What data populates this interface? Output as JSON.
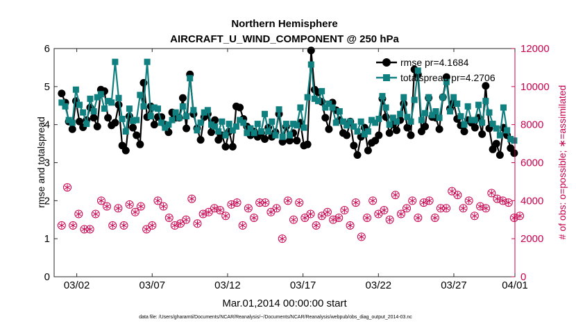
{
  "chart_data": {
    "type": "line",
    "title": "Northern Hemisphere",
    "subtitle": "AIRCRAFT_U_WIND_COMPONENT @ 250 hPa",
    "xlabel": "Mar.01,2014 00:00:00 start",
    "ylabel": "rmse and totalspread",
    "ylabel_right": "# of obs: o=possible; ∗=assimilated",
    "ylim": [
      0,
      6
    ],
    "ylim_right": [
      0,
      12000
    ],
    "xlim": [
      0.5,
      31.05
    ],
    "yticks": [
      0,
      1,
      2,
      3,
      4,
      5,
      6
    ],
    "yticks_right": [
      0,
      2000,
      4000,
      6000,
      8000,
      10000,
      12000
    ],
    "xticks": [
      {
        "x": 2,
        "label": "03/02"
      },
      {
        "x": 7,
        "label": "03/07"
      },
      {
        "x": 12,
        "label": "03/12"
      },
      {
        "x": 17,
        "label": "03/17"
      },
      {
        "x": 22,
        "label": "03/22"
      },
      {
        "x": 27,
        "label": "03/27"
      },
      {
        "x": 32,
        "label": "04/01"
      }
    ],
    "colors": {
      "rmse": "#000000",
      "spread": "#0f7f7f",
      "obs": "#c8004e"
    },
    "footer": "data file: /Users/gharamti/Documents/NCAR/Reanalysis/~/Documents/NCAR/Reanalysis/webpub/obs_diag_output_2014-03.nc",
    "series": [
      {
        "name": "rmse pr=4.1684",
        "axis": "left",
        "marker": "circle",
        "color": "#000000",
        "values": [
          4.82,
          4.58,
          4.08,
          3.88,
          4.62,
          4.08,
          3.93,
          4.12,
          4.45,
          4.18,
          3.95,
          4.92,
          4.88,
          4.18,
          3.98,
          4.05,
          4.52,
          3.45,
          3.32,
          4.22,
          3.92,
          3.72,
          3.48,
          5.1,
          4.2,
          4.48,
          4.0,
          4.2,
          4.2,
          4.0,
          3.8,
          4.32,
          4.18,
          4.18,
          4.7,
          3.9,
          5.32,
          4.28,
          3.9,
          3.6,
          4.2,
          4.28,
          3.8,
          4.12,
          3.6,
          3.72,
          3.42,
          3.82,
          3.42,
          4.48,
          4.45,
          4.15,
          3.95,
          3.72,
          3.82,
          3.68,
          3.78,
          3.62,
          3.92,
          3.68,
          3.8,
          4.28,
          3.55,
          3.95,
          3.58,
          3.78,
          3.58,
          4.05,
          3.45,
          3.48,
          5.95,
          4.92,
          4.85,
          4.6,
          4.18,
          3.88,
          4.58,
          4.38,
          4.12,
          3.78,
          3.72,
          4.08,
          3.45,
          3.2,
          3.68,
          3.92,
          3.32,
          3.52,
          3.58,
          3.72,
          4.68,
          4.2,
          3.78,
          4.0,
          3.85,
          4.12,
          4.55,
          3.92,
          3.72,
          5.45,
          5.32,
          3.82,
          3.95,
          4.7,
          4.2,
          4.18,
          3.88,
          4.72,
          5.25,
          4.42,
          4.58,
          4.15,
          3.98,
          3.82,
          4.12,
          4.05,
          3.92,
          4.18,
          3.75,
          5.02,
          3.9,
          3.35,
          3.5,
          3.2,
          3.92,
          3.72,
          3.38,
          3.25
        ]
      },
      {
        "name": "totalspread pr=4.2706",
        "axis": "left",
        "marker": "square",
        "color": "#0f7f7f",
        "values": [
          4.58,
          4.48,
          4.12,
          4.05,
          4.92,
          4.52,
          4.32,
          4.02,
          4.68,
          4.35,
          4.72,
          4.8,
          4.42,
          4.62,
          4.58,
          5.65,
          4.7,
          4.15,
          3.82,
          4.42,
          4.1,
          4.12,
          4.78,
          4.48,
          5.65,
          4.22,
          4.45,
          4.42,
          4.05,
          3.92,
          4.0,
          4.12,
          4.32,
          4.18,
          4.48,
          4.22,
          5.22,
          4.38,
          3.85,
          4.05,
          4.32,
          4.38,
          4.0,
          3.95,
          3.82,
          4.08,
          3.72,
          4.02,
          3.85,
          3.95,
          4.12,
          4.05,
          3.78,
          3.9,
          3.78,
          4.02,
          3.82,
          4.28,
          3.82,
          4.08,
          3.72,
          4.4,
          3.68,
          4.02,
          3.72,
          4.02,
          3.98,
          4.45,
          3.92,
          4.72,
          5.58,
          4.68,
          4.62,
          4.88,
          4.45,
          4.55,
          4.45,
          4.05,
          4.35,
          4.08,
          3.98,
          4.08,
          3.95,
          3.82,
          4.08,
          3.75,
          3.82,
          4.12,
          4.05,
          4.15,
          4.75,
          4.45,
          4.0,
          4.18,
          4.08,
          4.28,
          4.72,
          4.2,
          4.08,
          4.65,
          5.42,
          4.12,
          4.3,
          4.72,
          4.25,
          4.35,
          4.18,
          4.72,
          5.12,
          4.35,
          4.72,
          4.55,
          4.22,
          4.0,
          4.48,
          4.12,
          4.12,
          4.52,
          4.05,
          4.62,
          4.32,
          4.02,
          3.9,
          3.72,
          4.45,
          3.85,
          3.62,
          3.58
        ]
      },
      {
        "name": "obs possible",
        "axis": "right",
        "marker": "circle-open",
        "color": "#c8004e",
        "values": [
          2700,
          4700,
          2700,
          3300,
          2500,
          2500,
          3300,
          4000,
          3700,
          2700,
          3600,
          2700,
          3800,
          3400,
          3700,
          2500,
          2700,
          4000,
          3700,
          3100,
          2700,
          2800,
          3000,
          4100,
          2800,
          3300,
          3400,
          3600,
          3500,
          3200,
          3800,
          3900,
          2700,
          3600,
          3100,
          3900,
          3900,
          3400,
          3600,
          2000,
          4000,
          3000,
          3900,
          3100,
          3300,
          2700,
          3200,
          3400,
          3000,
          3100,
          3500,
          2700,
          3900,
          2100,
          3100,
          4000,
          3300,
          3500,
          3000,
          4300,
          3300,
          3600,
          4000,
          3100,
          3900,
          4000,
          3100,
          3600,
          3600,
          4500,
          4300,
          3600,
          4000,
          3200,
          3700,
          3600,
          4400,
          4100,
          4000,
          3900,
          3100,
          3200
        ]
      },
      {
        "name": "obs assimilated",
        "axis": "right",
        "marker": "asterisk",
        "color": "#c8004e",
        "values": [
          2700,
          4700,
          2700,
          3300,
          2500,
          2500,
          3300,
          4000,
          3700,
          2700,
          3600,
          2700,
          3800,
          3400,
          3700,
          2500,
          2700,
          4000,
          3700,
          3100,
          2700,
          2800,
          3000,
          4100,
          2800,
          3300,
          3400,
          3600,
          3500,
          3200,
          3800,
          3900,
          2700,
          3600,
          3100,
          3900,
          3900,
          3400,
          3600,
          2000,
          4000,
          3000,
          3900,
          3100,
          3300,
          2700,
          3200,
          3400,
          3000,
          3100,
          3500,
          2700,
          3900,
          2100,
          3100,
          4000,
          3300,
          3500,
          3000,
          4300,
          3300,
          3600,
          4000,
          3100,
          3900,
          4000,
          3100,
          3600,
          3600,
          4500,
          4300,
          3600,
          4000,
          3200,
          3700,
          3600,
          4400,
          4100,
          4000,
          3900,
          3100,
          3200
        ]
      }
    ]
  }
}
